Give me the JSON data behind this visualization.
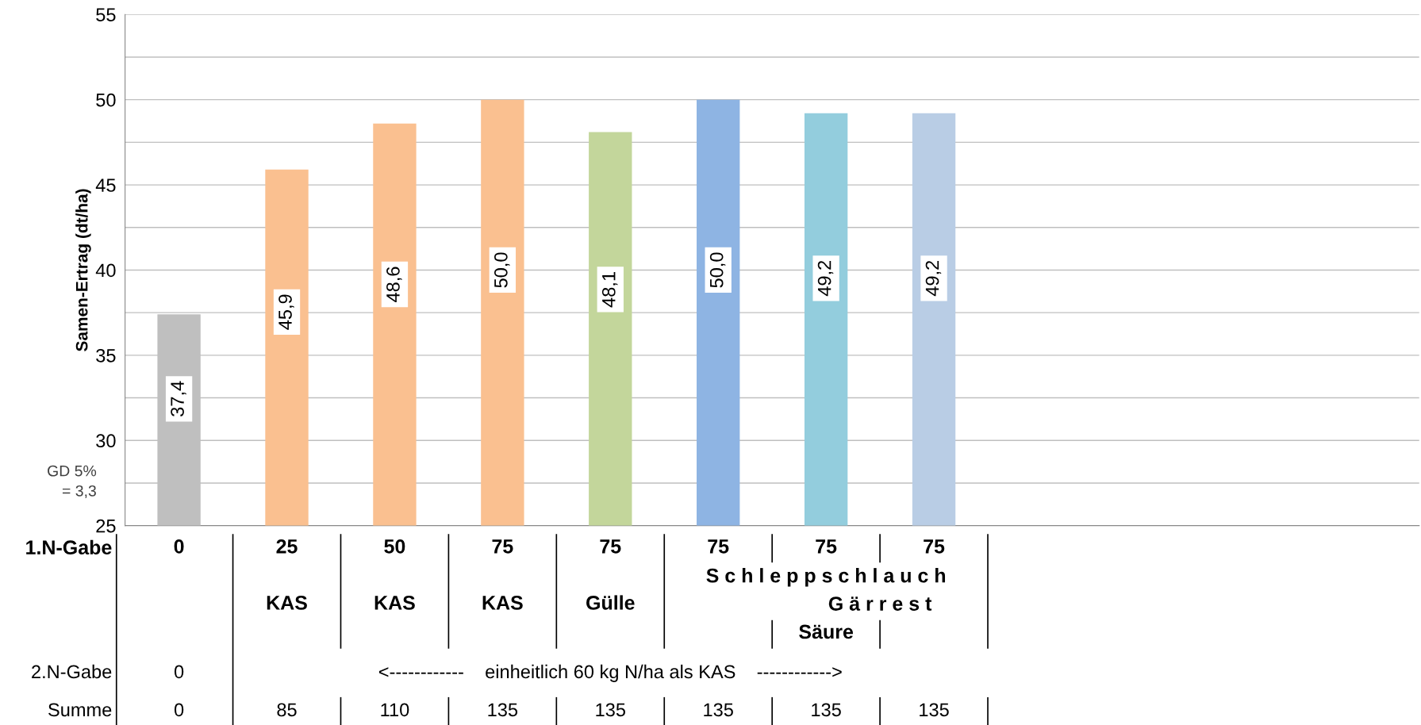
{
  "chart_data": {
    "type": "bar",
    "ylabel": "Samen-Ertrag (dt/ha)",
    "categories": [
      "0",
      "25",
      "50",
      "75",
      "75",
      "75",
      "75",
      "75",
      null,
      null,
      null,
      null
    ],
    "values": [
      37.4,
      45.9,
      48.6,
      50.0,
      48.1,
      50.0,
      49.2,
      49.2,
      null,
      null,
      null,
      null
    ],
    "colors": [
      "#bfbfbf",
      "#fac090",
      "#fac090",
      "#fac090",
      "#c3d69b",
      "#8eb4e3",
      "#93cddd",
      "#b9cde5",
      "#bfbfbf",
      "#bfbfbf",
      "#bfbfbf",
      "#bfbfbf"
    ],
    "value_labels": [
      "37,4",
      "45,9",
      "48,6",
      "50,0",
      "48,1",
      "50,0",
      "49,2",
      "49,2",
      null,
      null,
      null,
      null
    ],
    "ylim": [
      25,
      55
    ],
    "yticks": [
      25,
      {
        "value": 27.5,
        "label": null
      },
      30,
      {
        "value": 32.5,
        "label": null
      },
      35,
      {
        "value": 37.5,
        "label": null
      },
      40,
      {
        "value": 42.5,
        "label": null
      },
      45,
      {
        "value": 47.5,
        "label": null
      },
      50,
      {
        "value": 52.5,
        "label": null
      },
      55
    ],
    "grid": "y",
    "annotations": [
      "1.N-Gabe",
      "KAS",
      "KAS",
      "KAS",
      "Gülle",
      "S c h l e p p s c h l a u c h",
      "G ä r r e s t",
      "Säure",
      "2.N-Gabe",
      "0",
      "<------------    einheitlich 60 kg N/ha als KAS    ------------>",
      "Summe",
      "0",
      "85",
      "110",
      "135",
      "135",
      "135",
      "135",
      "135",
      "GD 5%\n= 3,3"
    ]
  }
}
